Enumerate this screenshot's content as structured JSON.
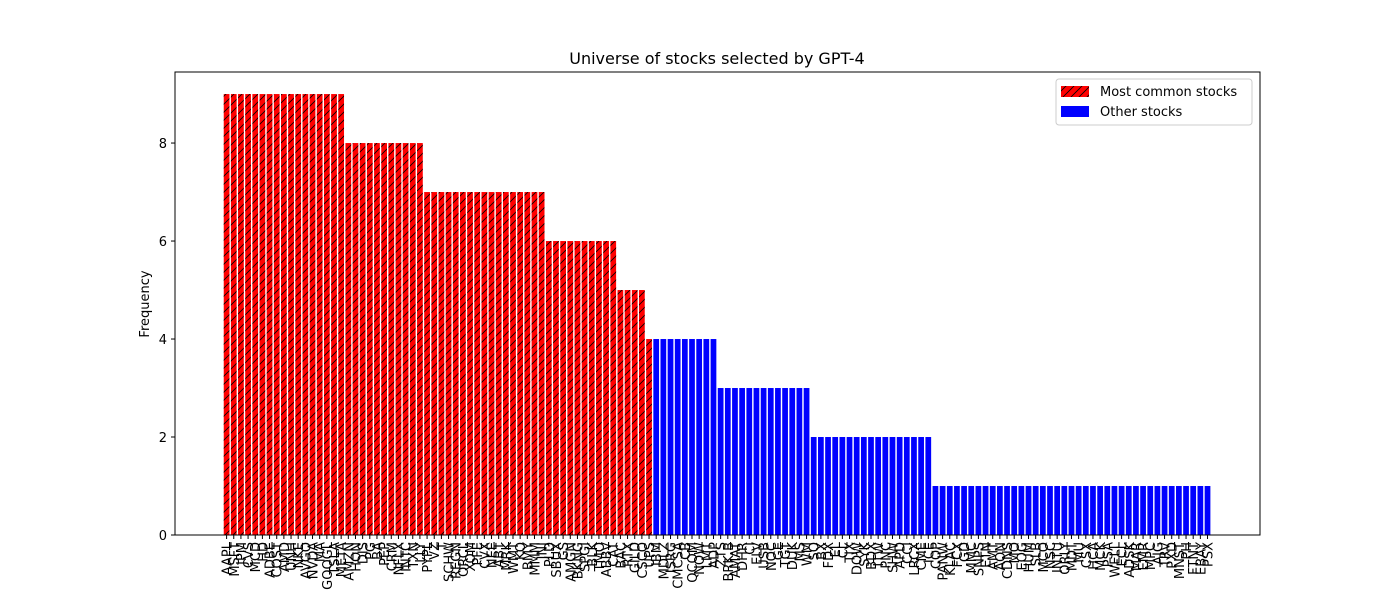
{
  "chart_data": {
    "type": "bar",
    "title": "Universe of stocks selected by GPT-4",
    "y_label": "Frequency",
    "categories": [
      "AAPL",
      "MSFT",
      "JPM",
      "CVS",
      "MCD",
      "HD",
      "ADBE",
      "COST",
      "AMD",
      "UNH",
      "NKE",
      "AVGO",
      "NVDA",
      "MA",
      "GOOGL",
      "TSLA",
      "META",
      "AMZN",
      "HON",
      "DIS",
      "PG",
      "BA",
      "PEP",
      "CRM",
      "NFLX",
      "INTC",
      "TXN",
      "LLY",
      "PYPL",
      "VZ",
      "T",
      "SCHW",
      "REGN",
      "ORCL",
      "XOM",
      "PFE",
      "CVX",
      "NEE",
      "ABT",
      "MRK",
      "WMT",
      "KO",
      "BMY",
      "MMM",
      "JNJ",
      "PLD",
      "SBUX",
      "GS",
      "AMGN",
      "BKNG",
      "SPGI",
      "BLK",
      "TMO",
      "ABBV",
      "CAT",
      "BAC",
      "RTX",
      "GILD",
      "CSCO",
      "UPS",
      "IBM",
      "MDLZ",
      "ISRG",
      "CMCSA",
      "CB",
      "QCOM",
      "NOW",
      "LMT",
      "ADP",
      "ZTS",
      "BRK.B",
      "AMAT",
      "DHR",
      "CI",
      "ELV",
      "USB",
      "NOC",
      "GE",
      "TGT",
      "DUK",
      "MS",
      "WM",
      "SO",
      "BX",
      "FDX",
      "EL",
      "CL",
      "TJX",
      "DOW",
      "SYK",
      "BDX",
      "ITW",
      "PNC",
      "SHW",
      "APD",
      "CCI",
      "LRCX",
      "CME",
      "ICE",
      "COP",
      "PANW",
      "KLAC",
      "FCX",
      "GD",
      "MMC",
      "SNPS",
      "ETN",
      "AMT",
      "AON",
      "CDNS",
      "MO",
      "EOG",
      "HUM",
      "SLB",
      "MCO",
      "NSC",
      "INTU",
      "ORLY",
      "MDT",
      "MU",
      "CSX",
      "HCA",
      "MCK",
      "PSA",
      "WELL",
      "ECL",
      "ADSK",
      "MAR",
      "EMR",
      "MPC",
      "AJG",
      "TRV",
      "PXD",
      "MNST",
      "PH",
      "FTNT",
      "EBAY",
      "PSX"
    ],
    "series": [
      {
        "name": "Most common stocks",
        "color": "#ff0000",
        "hatch": true,
        "values": [
          9,
          9,
          9,
          9,
          9,
          9,
          9,
          9,
          9,
          9,
          9,
          9,
          9,
          9,
          9,
          9,
          9,
          8,
          8,
          8,
          8,
          8,
          8,
          8,
          8,
          8,
          8,
          8,
          7,
          7,
          7,
          7,
          7,
          7,
          7,
          7,
          7,
          7,
          7,
          7,
          7,
          7,
          7,
          7,
          7,
          6,
          6,
          6,
          6,
          6,
          6,
          6,
          6,
          6,
          6,
          5,
          5,
          5,
          5,
          4,
          null,
          null,
          null,
          null,
          null,
          null,
          null,
          null,
          null,
          null,
          null,
          null,
          null,
          null,
          null,
          null,
          null,
          null,
          null,
          null,
          null,
          null,
          null,
          null,
          null,
          null,
          null,
          null,
          null,
          null,
          null,
          null,
          null,
          null,
          null,
          null,
          null,
          null,
          null,
          null,
          null,
          null,
          null,
          null,
          null,
          null,
          null,
          null,
          null,
          null,
          null,
          null,
          null,
          null,
          null,
          null,
          null,
          null,
          null,
          null,
          null,
          null,
          null,
          null,
          null,
          null,
          null,
          null,
          null,
          null,
          null,
          null,
          null,
          null,
          null,
          null,
          null,
          null
        ]
      },
      {
        "name": "Other stocks",
        "color": "#0000ff",
        "hatch": false,
        "values": [
          null,
          null,
          null,
          null,
          null,
          null,
          null,
          null,
          null,
          null,
          null,
          null,
          null,
          null,
          null,
          null,
          null,
          null,
          null,
          null,
          null,
          null,
          null,
          null,
          null,
          null,
          null,
          null,
          null,
          null,
          null,
          null,
          null,
          null,
          null,
          null,
          null,
          null,
          null,
          null,
          null,
          null,
          null,
          null,
          null,
          null,
          null,
          null,
          null,
          null,
          null,
          null,
          null,
          null,
          null,
          null,
          null,
          null,
          null,
          null,
          4,
          4,
          4,
          4,
          4,
          4,
          4,
          4,
          4,
          3,
          3,
          3,
          3,
          3,
          3,
          3,
          3,
          3,
          3,
          3,
          3,
          3,
          2,
          2,
          2,
          2,
          2,
          2,
          2,
          2,
          2,
          2,
          2,
          2,
          2,
          2,
          2,
          2,
          2,
          1,
          1,
          1,
          1,
          1,
          1,
          1,
          1,
          1,
          1,
          1,
          1,
          1,
          1,
          1,
          1,
          1,
          1,
          1,
          1,
          1,
          1,
          1,
          1,
          1,
          1,
          1,
          1,
          1,
          1,
          1,
          1,
          1,
          1,
          1,
          1,
          1,
          1,
          1
        ]
      }
    ],
    "ylim": [
      0,
      9.45
    ],
    "yticks": [
      0,
      2,
      4,
      6,
      8
    ],
    "legend": "upper right"
  }
}
